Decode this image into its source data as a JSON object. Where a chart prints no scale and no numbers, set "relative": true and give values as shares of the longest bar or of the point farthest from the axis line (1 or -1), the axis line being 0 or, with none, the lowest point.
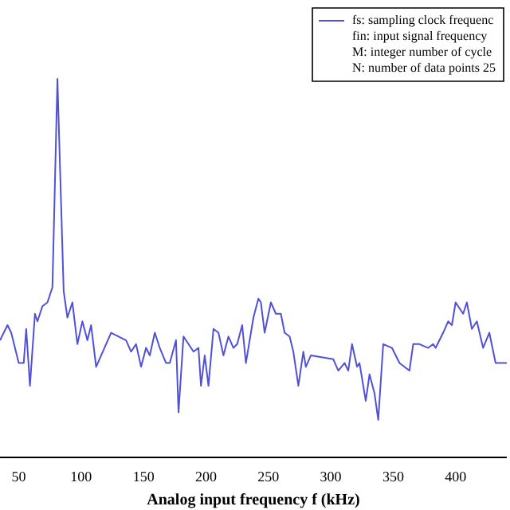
{
  "chart_data": {
    "type": "line",
    "relative": true,
    "xlabel": "Analog input frequency f (kHz)",
    "xlim": [
      35,
      441
    ],
    "xticks": [
      50,
      100,
      150,
      200,
      250,
      300,
      350,
      400
    ],
    "legend": "top right",
    "grid": false,
    "marker": "none",
    "annotations": [
      "fin: input signal frequency",
      "M: integer number of cycle",
      "N: number of data points 25"
    ],
    "series": [
      {
        "name": "fs: sampling clock frequenc",
        "color": "#5050d8",
        "x": [
          35,
          41,
          44,
          50,
          54,
          56,
          59,
          63,
          65,
          69,
          73,
          77,
          81,
          86,
          89,
          93,
          97,
          101,
          105,
          108,
          112,
          116,
          124,
          136,
          140,
          144,
          148,
          152,
          155,
          159,
          163,
          168,
          171,
          176,
          178,
          182,
          186,
          190,
          194,
          196,
          199,
          202,
          206,
          210,
          214,
          218,
          222,
          225,
          229,
          232,
          238,
          242,
          244,
          247,
          252,
          256,
          260,
          263,
          267,
          270,
          274,
          278,
          280,
          284,
          302,
          306,
          311,
          314,
          317,
          321,
          323,
          328,
          331,
          335,
          338,
          342,
          349,
          355,
          363,
          366,
          371,
          378,
          382,
          384,
          387,
          390,
          394,
          397,
          400,
          406,
          409,
          413,
          417,
          422,
          427,
          432,
          436,
          441
        ],
        "values": [
          0.31,
          0.35,
          0.33,
          0.25,
          0.25,
          0.34,
          0.19,
          0.38,
          0.36,
          0.4,
          0.41,
          0.45,
          1,
          0.44,
          0.37,
          0.41,
          0.3,
          0.36,
          0.31,
          0.35,
          0.24,
          0.27,
          0.33,
          0.31,
          0.28,
          0.3,
          0.24,
          0.29,
          0.27,
          0.33,
          0.29,
          0.25,
          0.25,
          0.31,
          0.12,
          0.32,
          0.3,
          0.28,
          0.29,
          0.19,
          0.27,
          0.19,
          0.34,
          0.33,
          0.27,
          0.32,
          0.29,
          0.3,
          0.35,
          0.25,
          0.37,
          0.42,
          0.41,
          0.33,
          0.41,
          0.38,
          0.38,
          0.33,
          0.32,
          0.28,
          0.19,
          0.28,
          0.24,
          0.27,
          0.26,
          0.23,
          0.25,
          0.23,
          0.3,
          0.24,
          0.25,
          0.15,
          0.22,
          0.17,
          0.1,
          0.3,
          0.29,
          0.25,
          0.23,
          0.3,
          0.3,
          0.29,
          0.3,
          0.29,
          0.31,
          0.33,
          0.36,
          0.35,
          0.41,
          0.38,
          0.41,
          0.34,
          0.36,
          0.29,
          0.33,
          0.25,
          0.25,
          0.25
        ]
      }
    ]
  }
}
